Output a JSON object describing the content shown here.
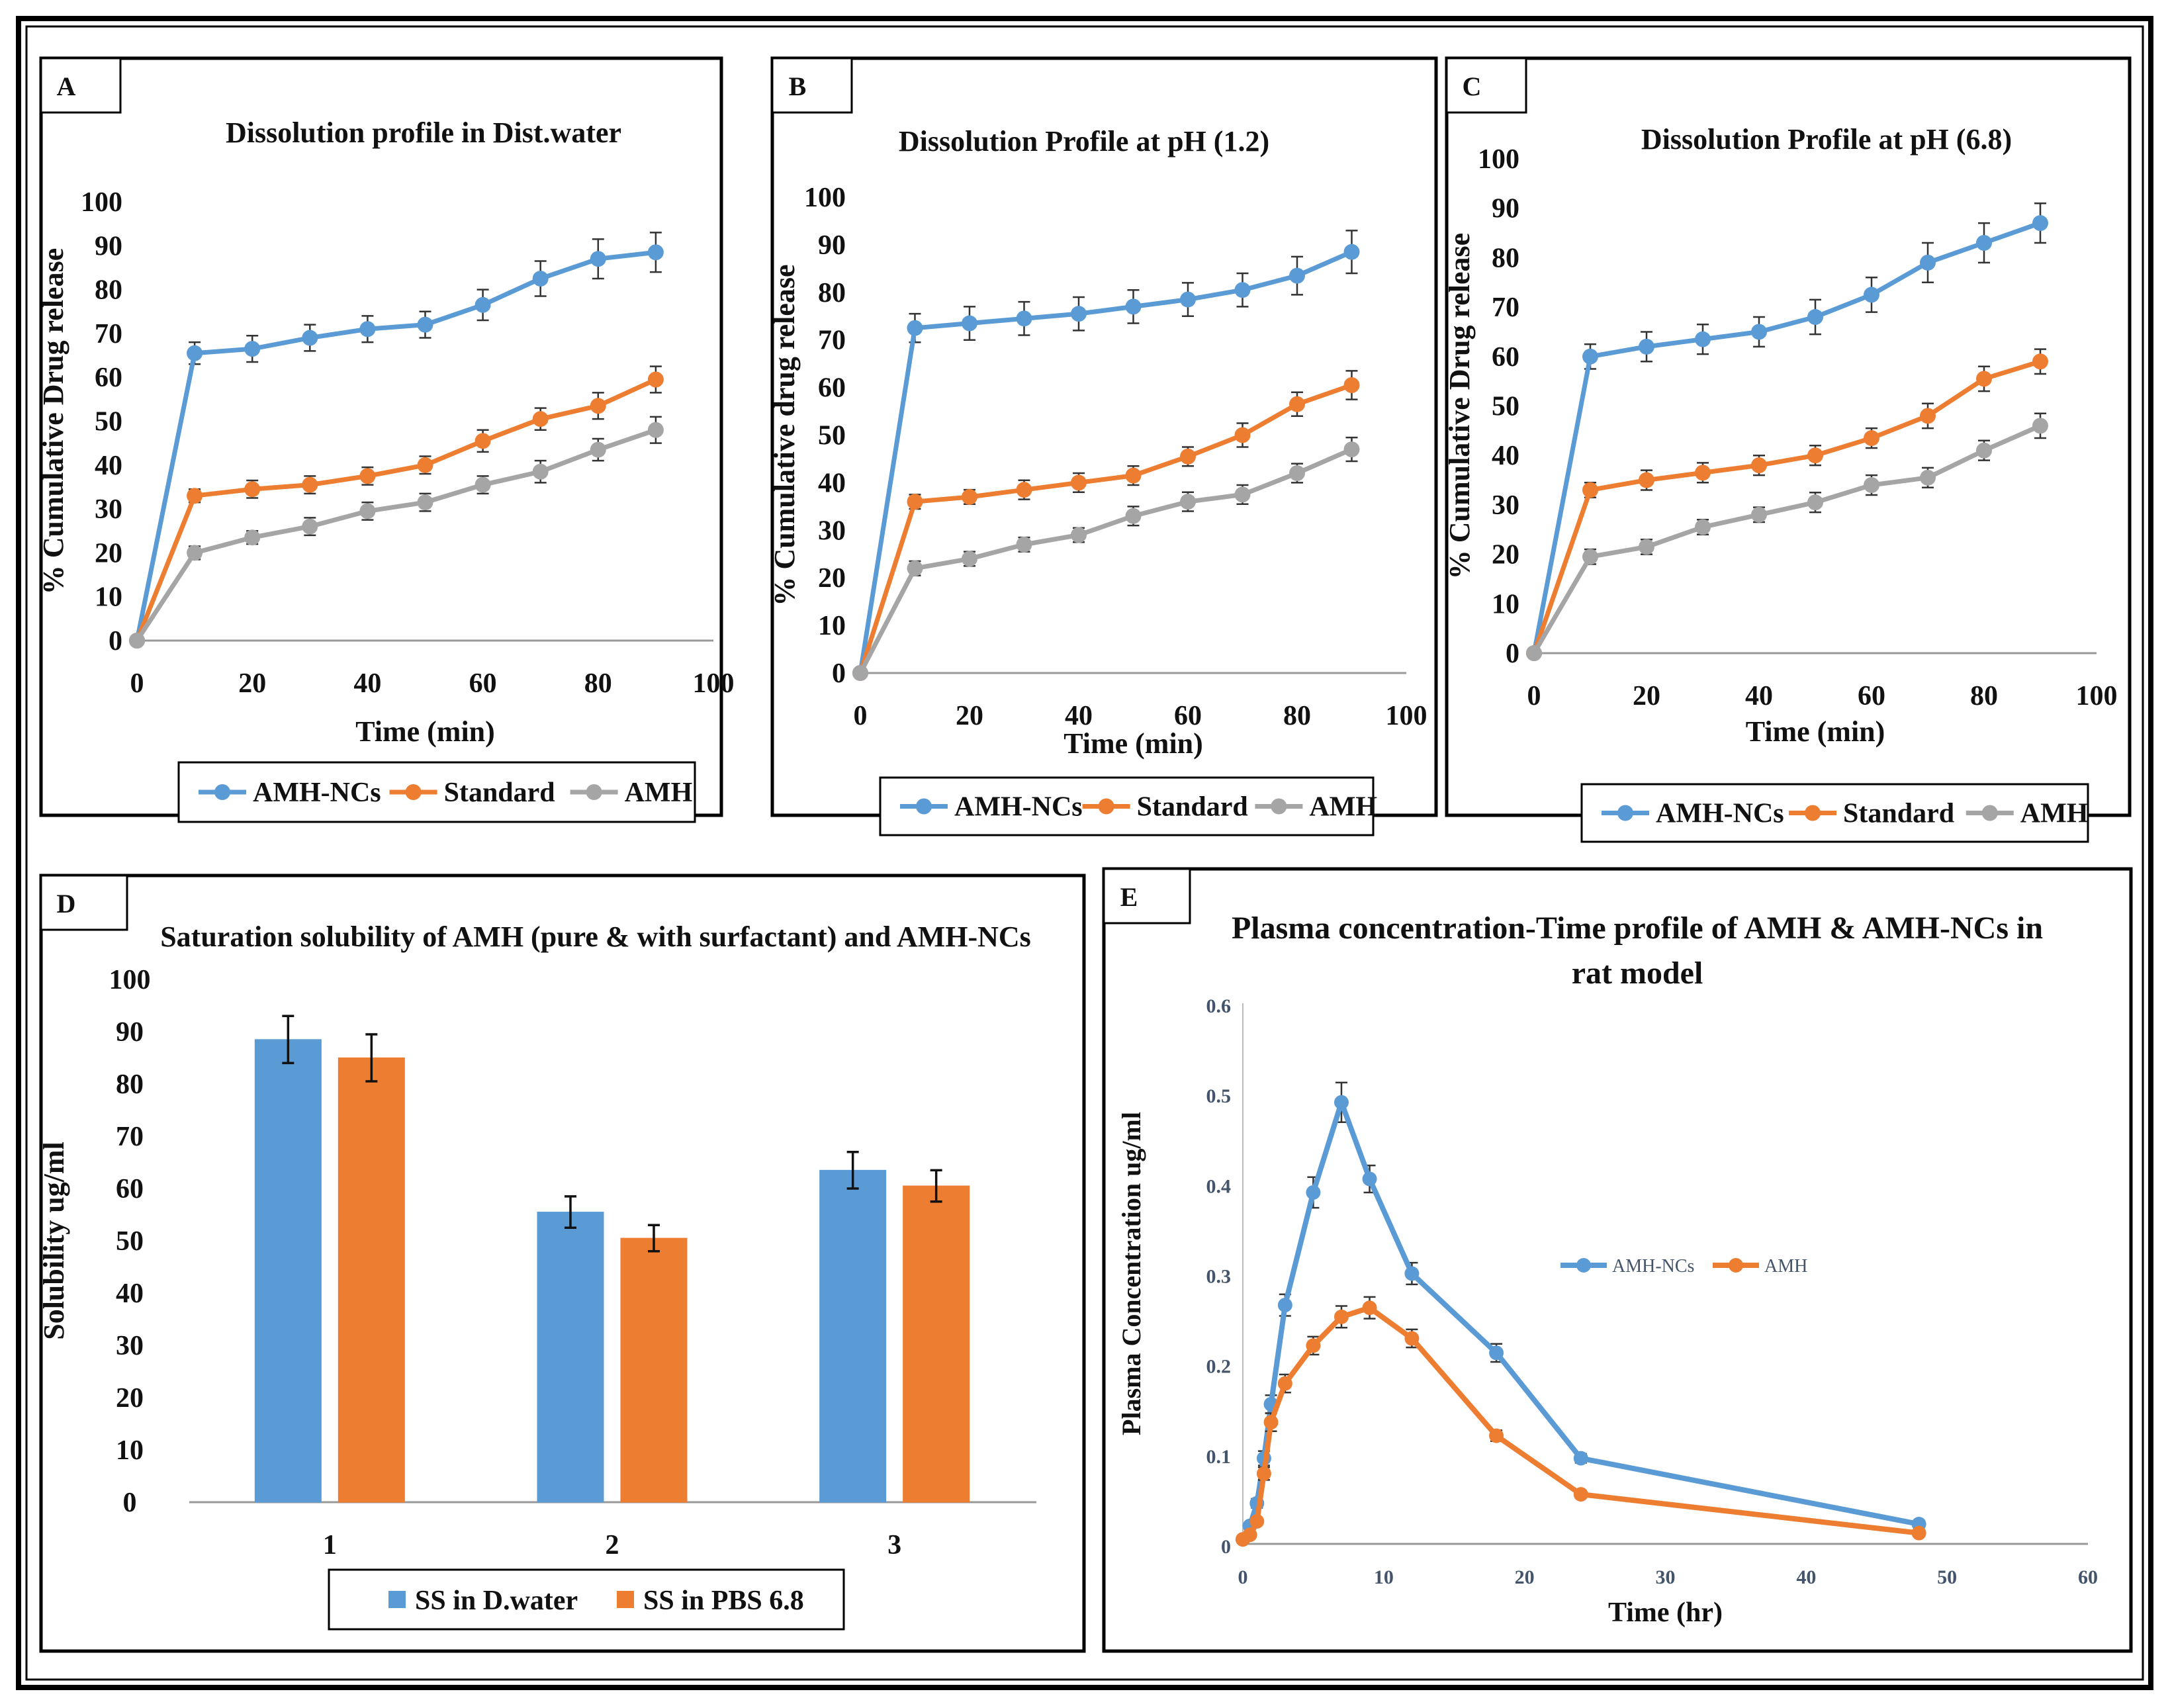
{
  "colors": {
    "blue": "#5b9bd5",
    "orange": "#ed7d31",
    "gray": "#a5a5a5",
    "frame": "#000000"
  },
  "figure_charts": [
    {
      "key": "A",
      "type": "line",
      "letter": "A",
      "title": "Dissolution profile in Dist.water",
      "xlabel": "Time  (min)",
      "ylabel": "% Cumulative Drug release",
      "xlim": [
        0,
        100
      ],
      "ylim": [
        0,
        100
      ],
      "xticks": [
        0,
        20,
        40,
        60,
        80,
        100
      ],
      "yticks": [
        0,
        10,
        20,
        30,
        40,
        50,
        60,
        70,
        80,
        90,
        100
      ],
      "x": [
        0,
        10,
        20,
        30,
        40,
        50,
        60,
        70,
        80,
        90
      ],
      "series": [
        {
          "name": "AMH-NCs",
          "color": "#5b9bd5",
          "values": [
            0,
            65.5,
            66.5,
            69,
            71,
            72,
            76.5,
            82.5,
            87,
            88.5
          ],
          "err": [
            0,
            2.5,
            3,
            3,
            3,
            3,
            3.5,
            4,
            4.5,
            4.5
          ]
        },
        {
          "name": "Standard",
          "color": "#ed7d31",
          "values": [
            0,
            33,
            34.5,
            35.5,
            37.5,
            40,
            45.5,
            50.5,
            53.5,
            59.5
          ],
          "err": [
            0,
            1.5,
            2,
            2,
            2,
            2,
            2.5,
            2.5,
            3,
            3
          ]
        },
        {
          "name": "AMH",
          "color": "#a5a5a5",
          "values": [
            0,
            20,
            23.5,
            26,
            29.5,
            31.5,
            35.5,
            38.5,
            43.5,
            48
          ],
          "err": [
            0,
            1.5,
            1.5,
            2,
            2,
            2,
            2,
            2.5,
            2.5,
            3
          ]
        }
      ]
    },
    {
      "key": "B",
      "type": "line",
      "letter": "B",
      "title": "Dissolution Profile at pH (1.2)",
      "xlabel": "Time (min)",
      "ylabel": "% Cumulative drug release",
      "xlim": [
        0,
        100
      ],
      "ylim": [
        0,
        100
      ],
      "xticks": [
        0,
        20,
        40,
        60,
        80,
        100
      ],
      "yticks": [
        0,
        10,
        20,
        30,
        40,
        50,
        60,
        70,
        80,
        90,
        100
      ],
      "x": [
        0,
        10,
        20,
        30,
        40,
        50,
        60,
        70,
        80,
        90
      ],
      "series": [
        {
          "name": "AMH-NCs",
          "color": "#5b9bd5",
          "values": [
            0,
            72.5,
            73.5,
            74.5,
            75.5,
            77,
            78.5,
            80.5,
            83.5,
            88.5
          ],
          "err": [
            0,
            3,
            3.5,
            3.5,
            3.5,
            3.5,
            3.5,
            3.5,
            4,
            4.5
          ]
        },
        {
          "name": "Standard",
          "color": "#ed7d31",
          "values": [
            0,
            36,
            37,
            38.5,
            40,
            41.5,
            45.5,
            50,
            56.5,
            60.5
          ],
          "err": [
            0,
            1.5,
            1.5,
            2,
            2,
            2,
            2,
            2.5,
            2.5,
            3
          ]
        },
        {
          "name": "AMH",
          "color": "#a5a5a5",
          "values": [
            0,
            22,
            24,
            27,
            29,
            33,
            36,
            37.5,
            42,
            47
          ],
          "err": [
            0,
            1.5,
            1.5,
            1.5,
            1.5,
            2,
            2,
            2,
            2,
            2.5
          ]
        }
      ]
    },
    {
      "key": "C",
      "type": "line",
      "letter": "C",
      "title": "Dissolution Profile at pH (6.8)",
      "xlabel": "Time (min)",
      "ylabel": "% Cumulative Drug release",
      "xlim": [
        0,
        100
      ],
      "ylim": [
        0,
        100
      ],
      "xticks": [
        0,
        20,
        40,
        60,
        80,
        100
      ],
      "yticks": [
        0,
        10,
        20,
        30,
        40,
        50,
        60,
        70,
        80,
        90,
        100
      ],
      "x": [
        0,
        10,
        20,
        30,
        40,
        50,
        60,
        70,
        80,
        90
      ],
      "series": [
        {
          "name": "AMH-NCs",
          "color": "#5b9bd5",
          "values": [
            0,
            60,
            62,
            63.5,
            65,
            68,
            72.5,
            79,
            83,
            87
          ],
          "err": [
            0,
            2.5,
            3,
            3,
            3,
            3.5,
            3.5,
            4,
            4,
            4
          ]
        },
        {
          "name": "Standard",
          "color": "#ed7d31",
          "values": [
            0,
            33,
            35,
            36.5,
            38,
            40,
            43.5,
            48,
            55.5,
            59
          ],
          "err": [
            0,
            1.5,
            2,
            2,
            2,
            2,
            2,
            2.5,
            2.5,
            2.5
          ]
        },
        {
          "name": "AMH",
          "color": "#a5a5a5",
          "values": [
            0,
            19.5,
            21.5,
            25.5,
            28,
            30.5,
            34,
            35.5,
            41,
            46
          ],
          "err": [
            0,
            1.5,
            1.5,
            1.5,
            1.5,
            2,
            2,
            2,
            2,
            2.5
          ]
        }
      ]
    },
    {
      "key": "D",
      "type": "bar",
      "letter": "D",
      "title": "Saturation solubility of AMH (pure & with surfactant) and AMH-NCs",
      "xlabel": "",
      "ylabel": "Solubility ug/ml",
      "ylim": [
        0,
        100
      ],
      "yticks": [
        0,
        10,
        20,
        30,
        40,
        50,
        60,
        70,
        80,
        90,
        100
      ],
      "categories": [
        "1",
        "2",
        "3"
      ],
      "series": [
        {
          "name": "SS in D.water",
          "color": "#5b9bd5",
          "values": [
            88.5,
            55.5,
            63.5
          ],
          "err": [
            4.5,
            3,
            3.5
          ]
        },
        {
          "name": "SS in PBS 6.8",
          "color": "#ed7d31",
          "values": [
            85,
            50.5,
            60.5
          ],
          "err": [
            4.5,
            2.5,
            3
          ]
        }
      ]
    },
    {
      "key": "E",
      "type": "line",
      "letter": "E",
      "title_line1": "Plasma concentration-Time profile of AMH & AMH-NCs in",
      "title_line2": "rat model",
      "xlabel": "Time (hr)",
      "ylabel": "Plasma Concentration ug/ml",
      "xlim": [
        0,
        60
      ],
      "ylim": [
        0,
        0.6
      ],
      "xticks": [
        0,
        10,
        20,
        30,
        40,
        50,
        60
      ],
      "yticks": [
        0,
        0.1,
        0.2,
        0.3,
        0.4,
        0.5,
        0.6
      ],
      "ytick_labels": [
        "0",
        "0.1",
        "0.2",
        "0.3",
        "0.4",
        "0.5",
        "0.6"
      ],
      "series": [
        {
          "name": "AMH-NCs",
          "color": "#5b9bd5",
          "x": [
            0,
            0.5,
            1,
            1.5,
            2,
            3,
            5,
            7,
            9,
            12,
            18,
            24,
            48
          ],
          "values": [
            0.005,
            0.02,
            0.045,
            0.095,
            0.155,
            0.265,
            0.39,
            0.49,
            0.405,
            0.3,
            0.212,
            0.095,
            0.022
          ],
          "err": [
            0,
            0,
            0.005,
            0.008,
            0.01,
            0.012,
            0.017,
            0.022,
            0.015,
            0.012,
            0.01,
            0.005,
            0.004
          ]
        },
        {
          "name": "AMH",
          "color": "#ed7d31",
          "x": [
            0,
            0.5,
            1,
            1.5,
            2,
            3,
            5,
            7,
            9,
            12,
            18,
            24,
            48
          ],
          "values": [
            0.005,
            0.01,
            0.025,
            0.078,
            0.135,
            0.178,
            0.22,
            0.252,
            0.262,
            0.228,
            0.12,
            0.055,
            0.012
          ],
          "err": [
            0,
            0,
            0.004,
            0.007,
            0.01,
            0.01,
            0.01,
            0.012,
            0.012,
            0.01,
            0.006,
            0.004,
            0.003
          ]
        }
      ]
    }
  ]
}
